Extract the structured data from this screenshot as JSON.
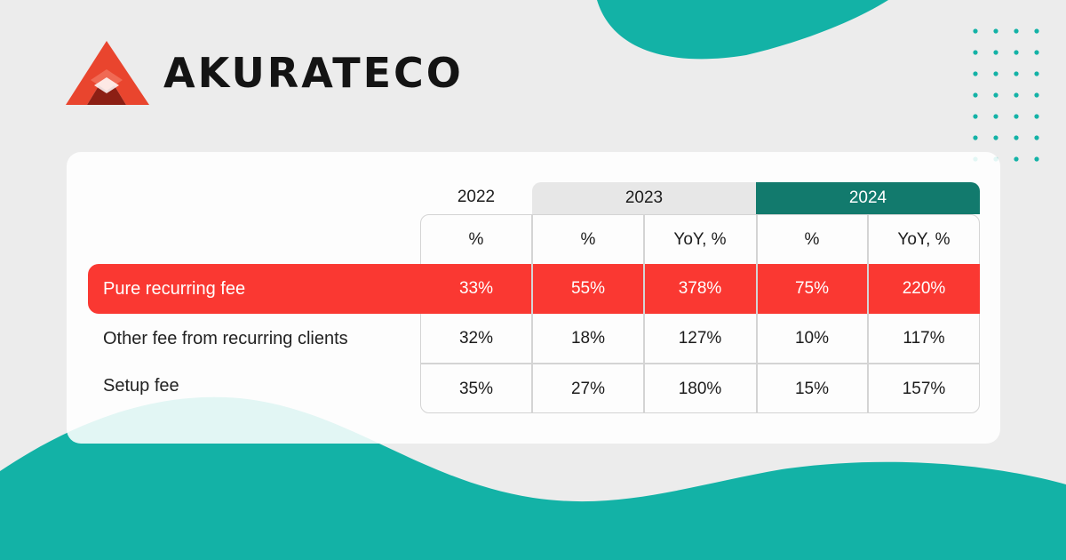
{
  "brand": {
    "name": "AKURATECO"
  },
  "colors": {
    "teal": "#13b2a6",
    "teal_dark": "#127a6d",
    "highlight_red": "#fa3832",
    "logo_red": "#e9452e",
    "logo_dark_red": "#8c1f14"
  },
  "table": {
    "years": [
      "2022",
      "2023",
      "2024"
    ],
    "subheaders": [
      "%",
      "%",
      "YoY, %",
      "%",
      "YoY, %"
    ],
    "rows": [
      {
        "label": "Pure recurring fee",
        "highlight": true,
        "values": [
          "33%",
          "55%",
          "378%",
          "75%",
          "220%"
        ]
      },
      {
        "label": "Other fee from recurring clients",
        "highlight": false,
        "values": [
          "32%",
          "18%",
          "127%",
          "10%",
          "117%"
        ]
      },
      {
        "label": "Setup fee",
        "highlight": false,
        "values": [
          "35%",
          "27%",
          "180%",
          "15%",
          "157%"
        ]
      }
    ]
  }
}
